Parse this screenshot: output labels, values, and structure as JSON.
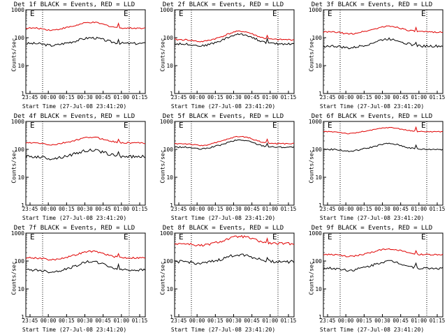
{
  "chart_data": [
    {
      "type": "line",
      "title": "Det 1f BLACK = Events, RED = LLD",
      "xlabel": "Start Time (27-Jul-08 23:41:20)",
      "ylabel": "Counts/sec",
      "yscale": "log",
      "ylim": [
        1,
        1000
      ],
      "x_ticks": [
        "23:45",
        "00:00",
        "00:15",
        "00:30",
        "00:45",
        "01:00",
        "01:15"
      ],
      "y_ticks": [
        "1",
        "10",
        "100",
        "1000"
      ],
      "markers": [
        "E",
        "E"
      ],
      "series": [
        {
          "name": "Events",
          "color": "#000000",
          "base": 62,
          "bump": 1.6,
          "noise": 0.1
        },
        {
          "name": "LLD",
          "color": "#e00000",
          "base": 220,
          "bump": 1.6,
          "noise": 0.06
        }
      ]
    },
    {
      "type": "line",
      "title": "Det 2f BLACK = Events, RED = LLD",
      "xlabel": "Start Time (27-Jul-08 23:41:20)",
      "ylabel": "Counts/sec",
      "yscale": "log",
      "ylim": [
        1,
        1000
      ],
      "x_ticks": [
        "23:45",
        "00:00",
        "00:15",
        "00:30",
        "00:45",
        "01:00",
        "01:15"
      ],
      "y_ticks": [
        "1",
        "10",
        "100",
        "1000"
      ],
      "markers": [
        "E",
        "E"
      ],
      "series": [
        {
          "name": "Events",
          "color": "#000000",
          "base": 60,
          "bump": 2.2,
          "noise": 0.08
        },
        {
          "name": "LLD",
          "color": "#e00000",
          "base": 85,
          "bump": 2.0,
          "noise": 0.06
        }
      ]
    },
    {
      "type": "line",
      "title": "Det 3f BLACK = Events, RED = LLD",
      "xlabel": "Start Time (27-Jul-08 23:41:20)",
      "ylabel": "Counts/sec",
      "yscale": "log",
      "ylim": [
        1,
        1000
      ],
      "x_ticks": [
        "23:45",
        "00:00",
        "00:15",
        "00:30",
        "00:45",
        "01:00",
        "01:15"
      ],
      "y_ticks": [
        "1",
        "10",
        "100",
        "1000"
      ],
      "markers": [
        "E",
        "E"
      ],
      "series": [
        {
          "name": "Events",
          "color": "#000000",
          "base": 50,
          "bump": 1.8,
          "noise": 0.1
        },
        {
          "name": "LLD",
          "color": "#e00000",
          "base": 160,
          "bump": 1.6,
          "noise": 0.06
        }
      ]
    },
    {
      "type": "line",
      "title": "Det 4f BLACK = Events, RED = LLD",
      "xlabel": "Start Time (27-Jul-08 23:41:20)",
      "ylabel": "Counts/sec",
      "yscale": "log",
      "ylim": [
        1,
        1000
      ],
      "x_ticks": [
        "23:45",
        "00:00",
        "00:15",
        "00:30",
        "00:45",
        "01:00",
        "01:15"
      ],
      "y_ticks": [
        "1",
        "10",
        "100",
        "1000"
      ],
      "markers": [
        "E",
        "E"
      ],
      "series": [
        {
          "name": "Events",
          "color": "#000000",
          "base": 55,
          "bump": 1.7,
          "noise": 0.12
        },
        {
          "name": "LLD",
          "color": "#e00000",
          "base": 170,
          "bump": 1.6,
          "noise": 0.06
        }
      ]
    },
    {
      "type": "line",
      "title": "Det 5f BLACK = Events, RED = LLD",
      "xlabel": "Start Time (27-Jul-08 23:41:20)",
      "ylabel": "Counts/sec",
      "yscale": "log",
      "ylim": [
        1,
        1000
      ],
      "x_ticks": [
        "23:45",
        "00:00",
        "00:15",
        "00:30",
        "00:45",
        "01:00",
        "01:15"
      ],
      "y_ticks": [
        "1",
        "10",
        "100",
        "1000"
      ],
      "markers": [
        "E",
        "E"
      ],
      "series": [
        {
          "name": "Events",
          "color": "#000000",
          "base": 120,
          "bump": 1.8,
          "noise": 0.06
        },
        {
          "name": "LLD",
          "color": "#e00000",
          "base": 160,
          "bump": 1.8,
          "noise": 0.05
        }
      ]
    },
    {
      "type": "line",
      "title": "Det 6f BLACK = Events, RED = LLD",
      "xlabel": "Start Time (27-Jul-08 23:41:20)",
      "ylabel": "Counts/sec",
      "yscale": "log",
      "ylim": [
        1,
        1000
      ],
      "x_ticks": [
        "23:45",
        "00:00",
        "00:15",
        "00:30",
        "00:45",
        "01:00",
        "01:15"
      ],
      "y_ticks": [
        "1",
        "10",
        "100",
        "1000"
      ],
      "markers": [
        "E",
        "E"
      ],
      "series": [
        {
          "name": "Events",
          "color": "#000000",
          "base": 100,
          "bump": 1.6,
          "noise": 0.06
        },
        {
          "name": "LLD",
          "color": "#e00000",
          "base": 430,
          "bump": 1.4,
          "noise": 0.04
        }
      ]
    },
    {
      "type": "line",
      "title": "Det 7f BLACK = Events, RED = LLD",
      "xlabel": "Start Time (27-Jul-08 23:41:20)",
      "ylabel": "Counts/sec",
      "yscale": "log",
      "ylim": [
        1,
        1000
      ],
      "x_ticks": [
        "23:45",
        "00:00",
        "00:15",
        "00:30",
        "00:45",
        "01:00",
        "01:15"
      ],
      "y_ticks": [
        "1",
        "10",
        "100",
        "1000"
      ],
      "markers": [
        "E",
        "E"
      ],
      "series": [
        {
          "name": "Events",
          "color": "#000000",
          "base": 48,
          "bump": 2.0,
          "noise": 0.1
        },
        {
          "name": "LLD",
          "color": "#e00000",
          "base": 130,
          "bump": 1.7,
          "noise": 0.07
        }
      ]
    },
    {
      "type": "line",
      "title": "Det 8f BLACK = Events, RED = LLD",
      "xlabel": "Start Time (27-Jul-08 23:41:20)",
      "ylabel": "Counts/sec",
      "yscale": "log",
      "ylim": [
        1,
        1000
      ],
      "x_ticks": [
        "23:45",
        "00:00",
        "00:15",
        "00:30",
        "00:45",
        "01:00",
        "01:15"
      ],
      "y_ticks": [
        "1",
        "10",
        "100",
        "1000"
      ],
      "markers": [
        "E",
        "E"
      ],
      "series": [
        {
          "name": "Events",
          "color": "#000000",
          "base": 95,
          "bump": 1.8,
          "noise": 0.12
        },
        {
          "name": "LLD",
          "color": "#e00000",
          "base": 420,
          "bump": 1.8,
          "noise": 0.1
        }
      ]
    },
    {
      "type": "line",
      "title": "Det 9f BLACK = Events, RED = LLD",
      "xlabel": "Start Time (27-Jul-08 23:41:20)",
      "ylabel": "Counts/sec",
      "yscale": "log",
      "ylim": [
        1,
        1000
      ],
      "x_ticks": [
        "23:45",
        "00:00",
        "00:15",
        "00:30",
        "00:45",
        "01:00",
        "01:15"
      ],
      "y_ticks": [
        "1",
        "10",
        "100",
        "1000"
      ],
      "markers": [
        "E",
        "E"
      ],
      "series": [
        {
          "name": "Events",
          "color": "#000000",
          "base": 55,
          "bump": 1.8,
          "noise": 0.1
        },
        {
          "name": "LLD",
          "color": "#e00000",
          "base": 170,
          "bump": 1.6,
          "noise": 0.06
        }
      ]
    }
  ]
}
